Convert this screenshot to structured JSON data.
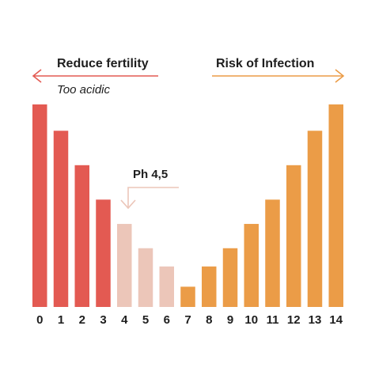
{
  "chart_data": {
    "type": "bar",
    "categories": [
      "0",
      "1",
      "2",
      "3",
      "4",
      "5",
      "6",
      "7",
      "8",
      "9",
      "10",
      "11",
      "12",
      "13",
      "14"
    ],
    "values": [
      100,
      87,
      70,
      53,
      41,
      29,
      20,
      10,
      20,
      29,
      41,
      53,
      70,
      87,
      100
    ],
    "ylim": [
      0,
      100
    ],
    "bar_colors": [
      "#e35a52",
      "#e35a52",
      "#e35a52",
      "#e35a52",
      "#ecc6b9",
      "#ecc6b9",
      "#ecc6b9",
      "#eb9c47",
      "#eb9c47",
      "#eb9c47",
      "#eb9c47",
      "#eb9c47",
      "#eb9c47",
      "#eb9c47",
      "#eb9c47"
    ],
    "annotations": {
      "left_label": "Reduce fertility",
      "left_sublabel": "Too acidic",
      "right_label": "Risk of Infection",
      "marker_label": "Ph 4,5",
      "left_color": "#e35a52",
      "right_color": "#eb9c47",
      "marker_color": "#ecc6b9"
    }
  }
}
